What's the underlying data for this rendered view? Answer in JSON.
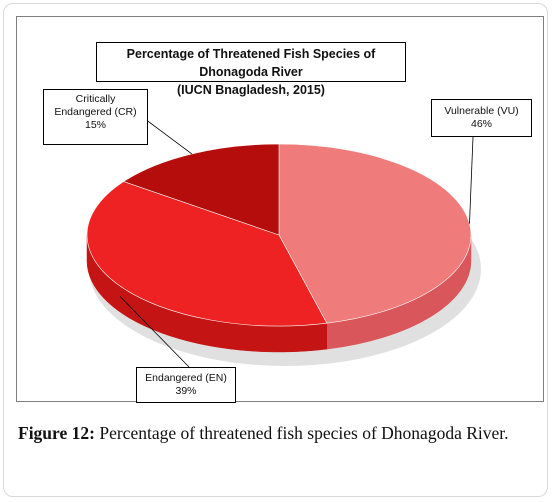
{
  "chart_data": {
    "type": "pie",
    "title_line1": "Percentage of Threatened Fish Species of Dhonagoda River",
    "title_line2": "(IUCN Bnagladesh, 2015)",
    "slices": [
      {
        "name_line1": "Vulnerable (VU)",
        "name_line2": "",
        "value": 46,
        "label_value": "46%",
        "color": "#f07b7b",
        "side_color": "#d9565a"
      },
      {
        "name_line1": "Endangered (EN)",
        "name_line2": "",
        "value": 39,
        "label_value": "39%",
        "color": "#ee2222",
        "side_color": "#c41414"
      },
      {
        "name_line1": "Critically",
        "name_line2": "Endangered (CR)",
        "value": 15,
        "label_value": "15%",
        "color": "#b50c0c",
        "side_color": "#8c0707"
      }
    ]
  },
  "caption": {
    "label": "Figure 12:",
    "text": "Percentage of threatened fish species of Dhonagoda River."
  }
}
